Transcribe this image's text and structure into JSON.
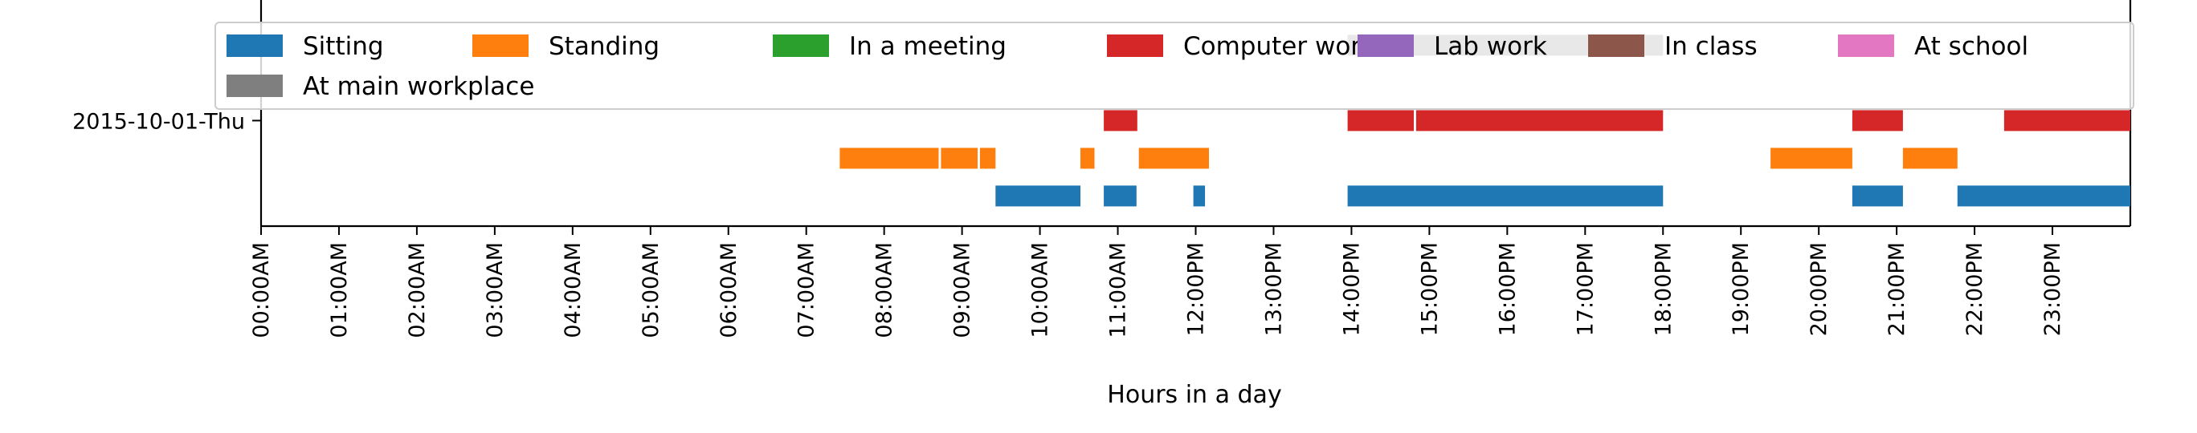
{
  "chart_data": {
    "type": "timeline",
    "title": "",
    "xlabel": "Hours in a day",
    "ylabel": "",
    "xlim": [
      0,
      24
    ],
    "ylim": [
      0.72,
      1.32
    ],
    "grid": false,
    "legend_placement": "top",
    "y_ticks": [
      {
        "label": "2015-10-01-Thu",
        "value": 1.0
      }
    ],
    "x_ticks": [
      "00:00AM",
      "01:00AM",
      "02:00AM",
      "03:00AM",
      "04:00AM",
      "05:00AM",
      "06:00AM",
      "07:00AM",
      "08:00AM",
      "09:00AM",
      "10:00AM",
      "11:00AM",
      "12:00PM",
      "13:00PM",
      "14:00PM",
      "15:00PM",
      "16:00PM",
      "17:00PM",
      "18:00PM",
      "19:00PM",
      "20:00PM",
      "21:00PM",
      "22:00PM",
      "23:00PM"
    ],
    "series": [
      {
        "name": "Sitting",
        "color": "#1f77b4",
        "row": 0.8,
        "segments": [
          [
            9.43,
            10.52
          ],
          [
            10.82,
            11.24
          ],
          [
            11.97,
            12.12
          ],
          [
            13.95,
            18.0
          ],
          [
            20.43,
            21.08
          ],
          [
            21.78,
            24.0
          ]
        ]
      },
      {
        "name": "Standing",
        "color": "#ff7f0e",
        "row": 0.9,
        "segments": [
          [
            7.43,
            8.7
          ],
          [
            8.73,
            9.2
          ],
          [
            9.23,
            9.43
          ],
          [
            10.52,
            10.7
          ],
          [
            11.27,
            12.17
          ],
          [
            19.38,
            20.43
          ],
          [
            21.08,
            21.78
          ]
        ]
      },
      {
        "name": "In a meeting",
        "color": "#2ca02c",
        "row": 1.0,
        "segments": []
      },
      {
        "name": "Computer work",
        "color": "#d62728",
        "row": 1.0,
        "segments": [
          [
            10.82,
            11.25
          ],
          [
            13.95,
            14.8
          ],
          [
            14.83,
            18.0
          ],
          [
            20.43,
            21.08
          ],
          [
            22.38,
            24.0
          ]
        ]
      },
      {
        "name": "Lab work",
        "color": "#9467bd",
        "row": 1.1,
        "segments": []
      },
      {
        "name": "In class",
        "color": "#8c564b",
        "row": 1.1,
        "segments": []
      },
      {
        "name": "At school",
        "color": "#e377c2",
        "row": 1.2,
        "segments": []
      },
      {
        "name": "At main workplace",
        "color": "#7f7f7f",
        "row": 1.2,
        "segments": [
          [
            13.95,
            18.0
          ]
        ]
      }
    ]
  }
}
